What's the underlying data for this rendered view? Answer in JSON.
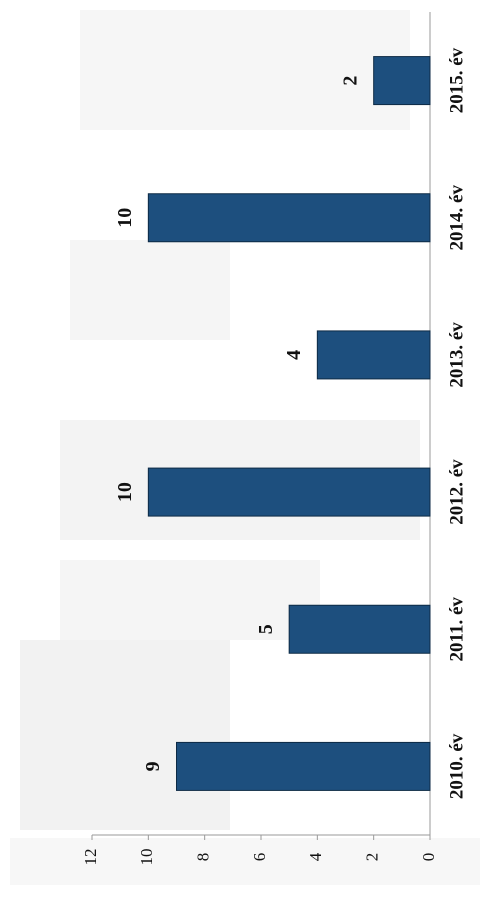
{
  "chart_data": {
    "type": "bar",
    "categories": [
      "2010. év",
      "2011. év",
      "2012. év",
      "2013. év",
      "2014. év",
      "2015. év"
    ],
    "values": [
      9,
      5,
      10,
      4,
      10,
      2
    ],
    "color": "#1d4f7e",
    "ylim": [
      0,
      12
    ],
    "yticks": [
      0,
      2,
      4,
      6,
      8,
      10,
      12
    ],
    "grid": false
  }
}
